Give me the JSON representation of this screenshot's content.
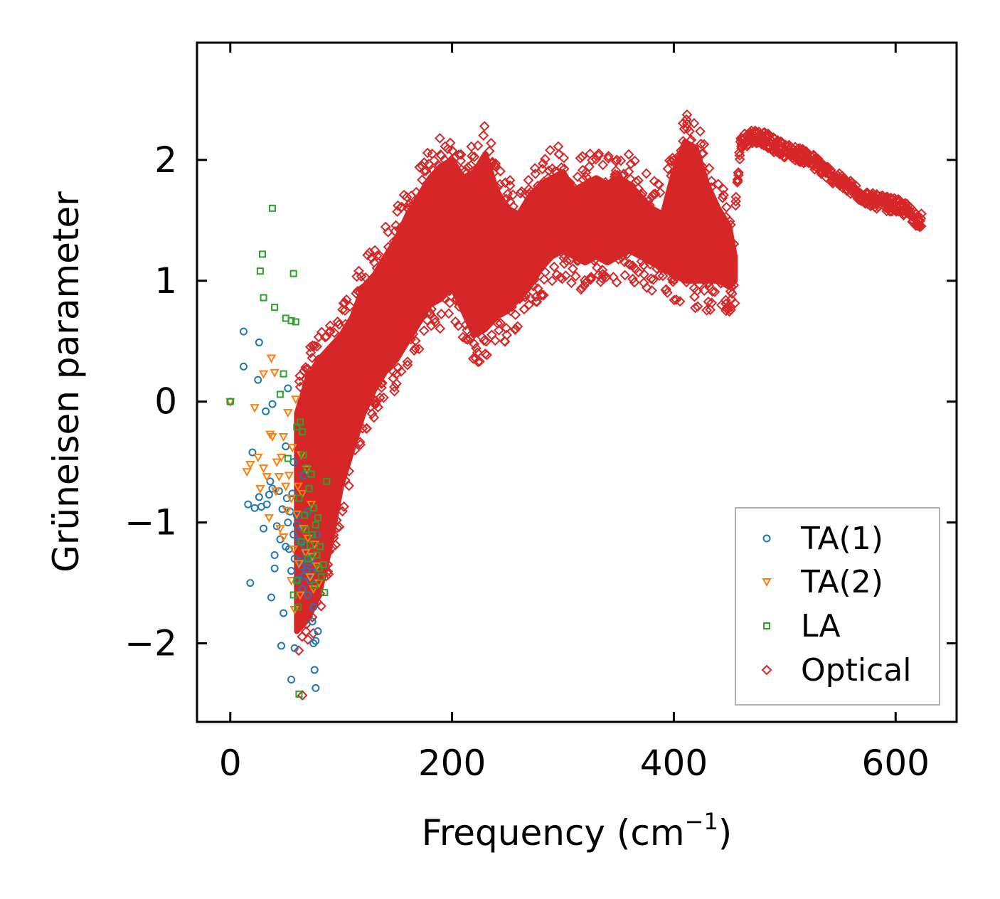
{
  "chart_data": {
    "type": "scatter",
    "title": "",
    "xlabel": "Frequency (cm",
    "xlabel_sup": "−1",
    "xlabel_suffix": ")",
    "ylabel": "Grüneisen parameter",
    "xlim": [
      -30,
      655
    ],
    "ylim": [
      -2.65,
      2.97
    ],
    "xticks": [
      0,
      200,
      400,
      600
    ],
    "xtick_labels": [
      "0",
      "200",
      "400",
      "600"
    ],
    "yticks": [
      -2,
      -1,
      0,
      1,
      2
    ],
    "ytick_labels": [
      "−2",
      "−1",
      "0",
      "1",
      "2"
    ],
    "legend_position": "lower-right",
    "series": [
      {
        "name": "TA(1)",
        "marker": "circle",
        "color": "#1f77b4",
        "points": [
          [
            0,
            0
          ],
          [
            12,
            0.58
          ],
          [
            12,
            0.29
          ],
          [
            16,
            -0.85
          ],
          [
            18,
            -1.5
          ],
          [
            20,
            -0.42
          ],
          [
            22,
            -0.88
          ],
          [
            25,
            0.18
          ],
          [
            26,
            0.49
          ],
          [
            26,
            -0.79
          ],
          [
            28,
            -0.87
          ],
          [
            30,
            -1.05
          ],
          [
            32,
            -0.08
          ],
          [
            33,
            -0.85
          ],
          [
            35,
            -0.77
          ],
          [
            36,
            -0.66
          ],
          [
            37,
            -1.62
          ],
          [
            38,
            -0.02
          ],
          [
            38,
            -0.72
          ],
          [
            40,
            -1.27
          ],
          [
            40,
            -1.38
          ],
          [
            42,
            -1.03
          ],
          [
            44,
            -0.74
          ],
          [
            45,
            -1.14
          ],
          [
            46,
            -2.02
          ],
          [
            47,
            -0.89
          ],
          [
            48,
            -1.75
          ],
          [
            50,
            -0.37
          ],
          [
            50,
            -1.2
          ],
          [
            51,
            -0.8
          ],
          [
            52,
            0.11
          ],
          [
            52,
            -1.0
          ],
          [
            53,
            -1.22
          ],
          [
            54,
            -0.91
          ],
          [
            55,
            -1.4
          ],
          [
            55,
            -2.3
          ],
          [
            56,
            -0.76
          ],
          [
            57,
            -0.5
          ],
          [
            57,
            -1.1
          ],
          [
            58,
            -2.04
          ],
          [
            58,
            -1.3
          ],
          [
            60,
            -1.02
          ],
          [
            60,
            -0.94
          ],
          [
            61,
            -1.47
          ],
          [
            62,
            -1.15
          ],
          [
            63,
            -1.32
          ],
          [
            64,
            -1.36
          ],
          [
            65,
            -1.05
          ],
          [
            65,
            -1.55
          ],
          [
            66,
            -0.61
          ],
          [
            67,
            -1.44
          ],
          [
            67,
            -1.19
          ],
          [
            68,
            -1.25
          ],
          [
            69,
            -1.4
          ],
          [
            70,
            -0.91
          ],
          [
            70,
            -1.6
          ],
          [
            71,
            -1.33
          ],
          [
            72,
            -1.48
          ],
          [
            73,
            -1.3
          ],
          [
            74,
            -1.41
          ],
          [
            74,
            -1.82
          ],
          [
            75,
            -1.7
          ],
          [
            75,
            -2.0
          ],
          [
            76,
            -2.22
          ],
          [
            77,
            -1.98
          ],
          [
            77,
            -2.37
          ],
          [
            78,
            -1.1
          ],
          [
            79,
            -1.9
          ]
        ]
      },
      {
        "name": "TA(2)",
        "marker": "triangle-down",
        "color": "#ff7f0e",
        "points": [
          [
            0,
            0
          ],
          [
            15,
            -0.58
          ],
          [
            18,
            -0.52
          ],
          [
            22,
            -0.05
          ],
          [
            25,
            -0.46
          ],
          [
            27,
            -0.72
          ],
          [
            30,
            0.23
          ],
          [
            30,
            -0.55
          ],
          [
            33,
            -0.62
          ],
          [
            35,
            -0.96
          ],
          [
            36,
            -0.27
          ],
          [
            37,
            0.36
          ],
          [
            38,
            -0.29
          ],
          [
            40,
            0.24
          ],
          [
            41,
            -0.74
          ],
          [
            42,
            -0.5
          ],
          [
            44,
            -0.62
          ],
          [
            45,
            -1.05
          ],
          [
            46,
            -0.46
          ],
          [
            48,
            -0.29
          ],
          [
            48,
            -1.12
          ],
          [
            50,
            -0.7
          ],
          [
            51,
            -0.9
          ],
          [
            52,
            -0.09
          ],
          [
            53,
            -0.61
          ],
          [
            55,
            -0.8
          ],
          [
            55,
            -1.48
          ],
          [
            56,
            -0.38
          ],
          [
            57,
            -1.22
          ],
          [
            58,
            -1.72
          ],
          [
            59,
            0.02
          ],
          [
            60,
            -0.93
          ],
          [
            61,
            -0.7
          ],
          [
            62,
            -1.34
          ],
          [
            63,
            -1.6
          ],
          [
            64,
            -0.44
          ],
          [
            65,
            -0.76
          ],
          [
            66,
            -1.05
          ],
          [
            68,
            -1.25
          ],
          [
            69,
            -0.56
          ],
          [
            70,
            -1.13
          ],
          [
            72,
            -1.45
          ],
          [
            73,
            -0.85
          ],
          [
            74,
            -1.28
          ],
          [
            75,
            -1.55
          ],
          [
            76,
            -1.18
          ],
          [
            78,
            -1.36
          ],
          [
            80,
            -1.5
          ]
        ]
      },
      {
        "name": "LA",
        "marker": "square",
        "color": "#2ca02c",
        "points": [
          [
            0,
            0
          ],
          [
            27,
            1.08
          ],
          [
            29,
            1.22
          ],
          [
            30,
            0.86
          ],
          [
            38,
            1.6
          ],
          [
            40,
            0.78
          ],
          [
            45,
            0.06
          ],
          [
            48,
            0.23
          ],
          [
            50,
            0.69
          ],
          [
            52,
            -0.47
          ],
          [
            55,
            0.67
          ],
          [
            57,
            1.06
          ],
          [
            57,
            -1.6
          ],
          [
            59,
            0.66
          ],
          [
            60,
            -0.21
          ],
          [
            60,
            -1.48
          ],
          [
            61,
            -1.7
          ],
          [
            62,
            -0.8
          ],
          [
            63,
            -0.17
          ],
          [
            64,
            -1.16
          ],
          [
            65,
            -0.25
          ],
          [
            66,
            -0.44
          ],
          [
            67,
            -0.94
          ],
          [
            68,
            -1.06
          ],
          [
            69,
            -0.55
          ],
          [
            70,
            -1.3
          ],
          [
            71,
            -0.72
          ],
          [
            72,
            -1.19
          ],
          [
            73,
            -0.6
          ],
          [
            74,
            -1.1
          ],
          [
            75,
            -0.88
          ],
          [
            76,
            -1.52
          ],
          [
            77,
            -1.02
          ],
          [
            78,
            -1.27
          ],
          [
            79,
            -0.96
          ],
          [
            80,
            -1.38
          ],
          [
            81,
            -1.2
          ],
          [
            82,
            -1.45
          ],
          [
            84,
            -1.35
          ],
          [
            85,
            -1.58
          ],
          [
            87,
            -0.66
          ],
          [
            62,
            -2.42
          ]
        ]
      },
      {
        "name": "Optical",
        "marker": "diamond",
        "color": "#d62728",
        "points": [
          [
            65,
            -2.43
          ],
          [
            70,
            -1.78
          ],
          [
            75,
            -1.52
          ],
          [
            80,
            -1.22
          ],
          [
            85,
            -1.05
          ],
          [
            90,
            -0.8
          ],
          [
            95,
            -0.55
          ],
          [
            100,
            -0.25
          ],
          [
            110,
            0.05
          ],
          [
            120,
            0.3
          ],
          [
            130,
            0.55
          ],
          [
            140,
            0.75
          ],
          [
            150,
            0.9
          ],
          [
            160,
            1.05
          ],
          [
            170,
            1.2
          ],
          [
            180,
            1.4
          ],
          [
            190,
            1.6
          ],
          [
            200,
            1.5
          ],
          [
            210,
            1.3
          ],
          [
            220,
            1.2
          ],
          [
            230,
            1.25
          ],
          [
            240,
            1.15
          ],
          [
            250,
            1.1
          ],
          [
            260,
            1.2
          ],
          [
            270,
            1.35
          ],
          [
            280,
            1.45
          ],
          [
            290,
            1.5
          ],
          [
            300,
            1.55
          ],
          [
            310,
            1.45
          ],
          [
            320,
            1.35
          ],
          [
            330,
            1.5
          ],
          [
            340,
            1.4
          ],
          [
            350,
            1.5
          ],
          [
            360,
            1.55
          ],
          [
            370,
            1.45
          ],
          [
            380,
            1.35
          ],
          [
            390,
            1.3
          ],
          [
            400,
            1.45
          ],
          [
            410,
            1.6
          ],
          [
            420,
            1.5
          ],
          [
            430,
            1.4
          ],
          [
            440,
            1.3
          ],
          [
            450,
            1.2
          ],
          [
            460,
            2.15
          ],
          [
            470,
            2.2
          ],
          [
            480,
            2.18
          ],
          [
            490,
            2.12
          ],
          [
            500,
            2.08
          ],
          [
            510,
            2.05
          ],
          [
            520,
            2.02
          ],
          [
            530,
            1.95
          ],
          [
            540,
            1.88
          ],
          [
            550,
            1.82
          ],
          [
            560,
            1.76
          ],
          [
            570,
            1.7
          ],
          [
            580,
            1.66
          ],
          [
            590,
            1.64
          ],
          [
            600,
            1.62
          ],
          [
            610,
            1.58
          ],
          [
            620,
            1.5
          ]
        ],
        "envelope": {
          "x": [
            60,
            70,
            80,
            90,
            100,
            110,
            120,
            130,
            140,
            150,
            160,
            170,
            180,
            190,
            200,
            210,
            220,
            230,
            240,
            250,
            260,
            270,
            280,
            290,
            300,
            310,
            320,
            330,
            340,
            350,
            360,
            370,
            380,
            390,
            400,
            410,
            420,
            430,
            440,
            450,
            455
          ],
          "upper": [
            -0.1,
            0.2,
            0.35,
            0.45,
            0.55,
            0.7,
            0.95,
            1.05,
            1.2,
            1.35,
            1.55,
            1.7,
            1.85,
            1.95,
            2.0,
            1.85,
            1.9,
            2.05,
            1.75,
            1.6,
            1.55,
            1.7,
            1.8,
            1.85,
            1.9,
            1.75,
            1.8,
            1.85,
            1.8,
            1.85,
            1.8,
            1.7,
            1.6,
            1.55,
            1.9,
            2.15,
            2.1,
            1.8,
            1.6,
            1.45,
            1.2
          ],
          "lower": [
            -1.9,
            -1.8,
            -1.6,
            -1.2,
            -0.7,
            -0.4,
            -0.1,
            0.1,
            0.25,
            0.35,
            0.5,
            0.65,
            0.8,
            0.85,
            0.95,
            0.75,
            0.55,
            0.6,
            0.7,
            0.75,
            0.85,
            0.95,
            1.1,
            1.2,
            1.25,
            1.2,
            1.15,
            1.2,
            1.15,
            1.2,
            1.25,
            1.2,
            1.15,
            1.1,
            1.05,
            1.0,
            1.0,
            1.0,
            1.0,
            0.95,
            1.0
          ]
        }
      }
    ]
  }
}
